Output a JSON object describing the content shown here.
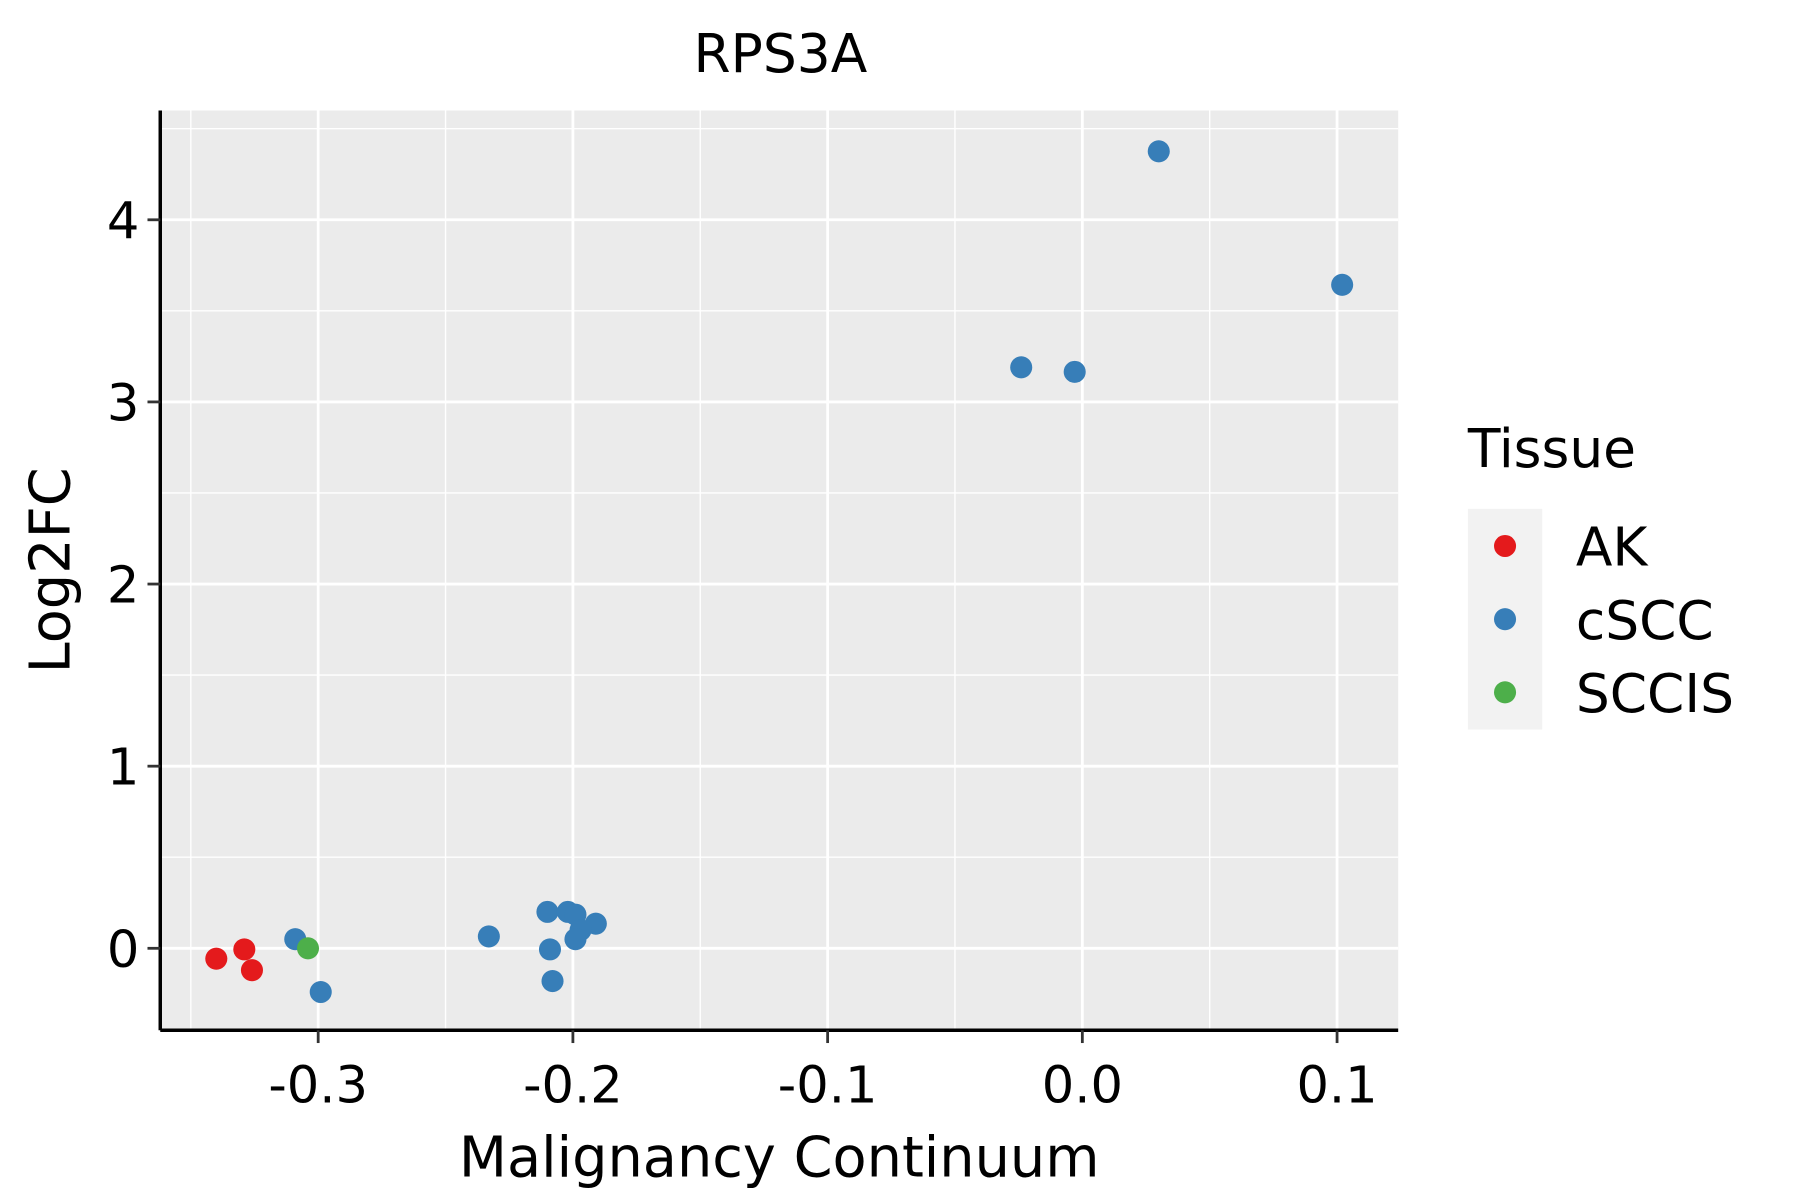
{
  "chart_data": {
    "type": "scatter",
    "title": "RPS3A",
    "xlabel": "Malignancy Continuum",
    "ylabel": "Log2FC",
    "xlim": [
      -0.362,
      0.124
    ],
    "ylim": [
      -0.45,
      4.6
    ],
    "xticks": [
      -0.3,
      -0.2,
      -0.1,
      0.0,
      0.1
    ],
    "xtick_labels": [
      "-0.3",
      "-0.2",
      "-0.1",
      "0.0",
      "0.1"
    ],
    "yticks": [
      0,
      1,
      2,
      3,
      4
    ],
    "ytick_labels": [
      "0",
      "1",
      "2",
      "3",
      "4"
    ],
    "grid": true,
    "legend": {
      "title": "Tissue",
      "placement": "right"
    },
    "series": [
      {
        "name": "AK",
        "color": "#E41A1C",
        "points": [
          [
            -0.34,
            -0.057
          ],
          [
            -0.329,
            -0.006
          ],
          [
            -0.326,
            -0.12
          ]
        ]
      },
      {
        "name": "cSCC",
        "color": "#377EB8",
        "points": [
          [
            -0.309,
            0.05
          ],
          [
            -0.299,
            -0.24
          ],
          [
            -0.233,
            0.065
          ],
          [
            -0.21,
            0.2
          ],
          [
            -0.202,
            0.2
          ],
          [
            -0.199,
            0.185
          ],
          [
            -0.191,
            0.135
          ],
          [
            -0.197,
            0.1
          ],
          [
            -0.199,
            0.05
          ],
          [
            -0.209,
            -0.006
          ],
          [
            -0.208,
            -0.18
          ],
          [
            -0.024,
            3.19
          ],
          [
            -0.003,
            3.165
          ],
          [
            0.03,
            4.376
          ],
          [
            0.102,
            3.643
          ]
        ]
      },
      {
        "name": "SCCIS",
        "color": "#4DAF4A",
        "points": [
          [
            -0.304,
            0.0
          ]
        ]
      }
    ]
  }
}
